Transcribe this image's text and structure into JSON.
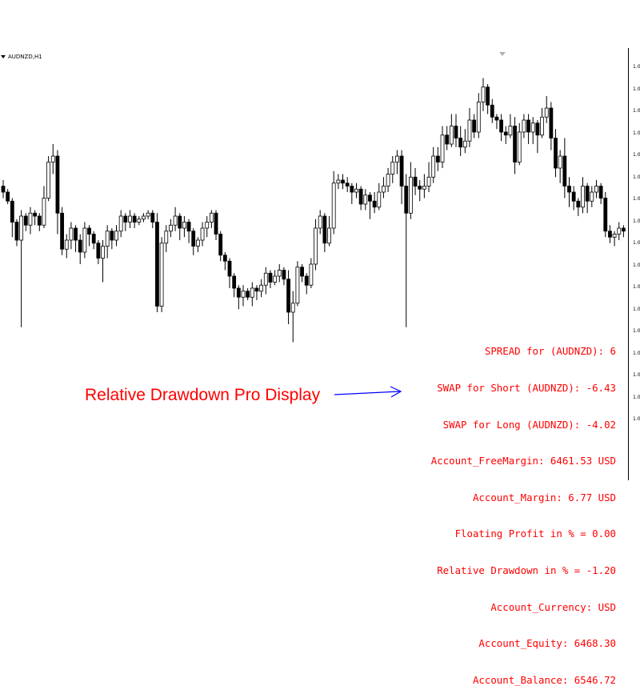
{
  "window": {
    "symbol": "AUDNZD,H1"
  },
  "price_axis": {
    "tick_label": "1.0"
  },
  "info_panel": {
    "lines": [
      "SPREAD for (AUDNZD): 6",
      "SWAP for Short (AUDNZD): -6.43",
      "SWAP for Long (AUDNZD): -4.02",
      "Account_FreeMargin: 6461.53 USD",
      "Account_Margin: 6.77 USD",
      "Floating Profit in % = 0.00",
      "Relative Drawdown in % = -1.20",
      "Account_Currency: USD",
      "Account_Equity: 6468.30",
      "Account_Balance: 6546.72"
    ]
  },
  "caption": "Relative Drawdown Pro Display",
  "colors": {
    "text_accent": "#ff0000",
    "arrow": "#0000ff",
    "candle": "#000000",
    "bull_fill": "#ffffff",
    "bear_fill": "#000000"
  },
  "chart_data": {
    "type": "candlestick",
    "title": "",
    "xlabel": "",
    "ylabel": "",
    "ylim": [
      0,
      100
    ],
    "grid": false,
    "candles": [
      [
        62,
        60,
        64,
        58
      ],
      [
        60,
        57,
        61,
        56
      ],
      [
        57,
        50,
        58,
        45
      ],
      [
        50,
        44,
        51,
        42
      ],
      [
        44,
        52,
        54,
        15
      ],
      [
        52,
        49,
        53,
        47
      ],
      [
        49,
        53,
        55,
        46
      ],
      [
        53,
        52,
        54,
        49
      ],
      [
        52,
        49,
        53,
        47
      ],
      [
        49,
        58,
        62,
        48
      ],
      [
        58,
        70,
        72,
        57
      ],
      [
        70,
        72,
        76,
        66
      ],
      [
        72,
        53,
        74,
        46
      ],
      [
        53,
        41,
        55,
        39
      ],
      [
        41,
        44,
        46,
        38
      ],
      [
        44,
        48,
        50,
        41
      ],
      [
        48,
        44,
        49,
        40
      ],
      [
        44,
        40,
        46,
        36
      ],
      [
        40,
        48,
        50,
        38
      ],
      [
        48,
        46,
        49,
        42
      ],
      [
        46,
        43,
        47,
        41
      ],
      [
        43,
        38,
        44,
        36
      ],
      [
        38,
        42,
        44,
        30
      ],
      [
        42,
        47,
        49,
        38
      ],
      [
        47,
        44,
        48,
        41
      ],
      [
        44,
        47,
        49,
        42
      ],
      [
        47,
        52,
        54,
        45
      ],
      [
        52,
        50,
        53,
        47
      ],
      [
        50,
        52,
        54,
        48
      ],
      [
        52,
        50,
        53,
        48
      ],
      [
        50,
        51,
        52,
        49
      ],
      [
        51,
        52,
        53,
        50
      ],
      [
        52,
        53,
        54,
        51
      ],
      [
        53,
        50,
        54,
        48
      ],
      [
        50,
        22,
        53,
        20
      ],
      [
        22,
        43,
        45,
        20
      ],
      [
        43,
        47,
        49,
        40
      ],
      [
        47,
        49,
        51,
        45
      ],
      [
        49,
        52,
        55,
        47
      ],
      [
        52,
        48,
        53,
        44
      ],
      [
        48,
        50,
        52,
        45
      ],
      [
        50,
        47,
        51,
        43
      ],
      [
        47,
        42,
        48,
        39
      ],
      [
        42,
        44,
        45,
        40
      ],
      [
        44,
        48,
        50,
        42
      ],
      [
        48,
        50,
        52,
        45
      ],
      [
        50,
        53,
        54,
        48
      ],
      [
        53,
        46,
        54,
        44
      ],
      [
        46,
        39,
        47,
        37
      ],
      [
        39,
        37,
        40,
        34
      ],
      [
        37,
        32,
        38,
        28
      ],
      [
        32,
        28,
        33,
        25
      ],
      [
        28,
        25,
        29,
        21
      ],
      [
        25,
        27,
        29,
        22
      ],
      [
        27,
        25,
        28,
        24
      ],
      [
        25,
        28,
        30,
        22
      ],
      [
        28,
        27,
        29,
        24
      ],
      [
        27,
        29,
        31,
        25
      ],
      [
        29,
        33,
        35,
        26
      ],
      [
        33,
        30,
        34,
        28
      ],
      [
        30,
        32,
        34,
        29
      ],
      [
        32,
        34,
        36,
        30
      ],
      [
        34,
        31,
        35,
        29
      ],
      [
        31,
        20,
        34,
        16
      ],
      [
        20,
        23,
        27,
        10
      ],
      [
        23,
        35,
        37,
        22
      ],
      [
        35,
        32,
        36,
        30
      ],
      [
        32,
        29,
        33,
        26
      ],
      [
        29,
        36,
        38,
        28
      ],
      [
        36,
        48,
        51,
        34
      ],
      [
        48,
        52,
        54,
        46
      ],
      [
        52,
        43,
        53,
        40
      ],
      [
        43,
        48,
        52,
        42
      ],
      [
        48,
        63,
        67,
        46
      ],
      [
        63,
        64,
        66,
        61
      ],
      [
        64,
        63,
        66,
        61
      ],
      [
        63,
        62,
        65,
        60
      ],
      [
        62,
        60,
        63,
        56
      ],
      [
        60,
        61,
        63,
        58
      ],
      [
        61,
        56,
        62,
        54
      ],
      [
        56,
        59,
        61,
        54
      ],
      [
        59,
        57,
        60,
        51
      ],
      [
        57,
        55,
        60,
        53
      ],
      [
        55,
        60,
        63,
        54
      ],
      [
        60,
        62,
        65,
        58
      ],
      [
        62,
        66,
        68,
        60
      ],
      [
        66,
        70,
        72,
        63
      ],
      [
        70,
        72,
        74,
        66
      ],
      [
        72,
        62,
        74,
        56
      ],
      [
        62,
        53,
        66,
        15
      ],
      [
        53,
        65,
        70,
        51
      ],
      [
        65,
        62,
        68,
        59
      ],
      [
        62,
        61,
        64,
        57
      ],
      [
        61,
        62,
        66,
        58
      ],
      [
        62,
        65,
        70,
        60
      ],
      [
        65,
        72,
        75,
        63
      ],
      [
        72,
        70,
        75,
        67
      ],
      [
        70,
        79,
        82,
        68
      ],
      [
        79,
        76,
        82,
        74
      ],
      [
        76,
        82,
        86,
        75
      ],
      [
        82,
        78,
        86,
        75
      ],
      [
        78,
        75,
        82,
        72
      ],
      [
        75,
        77,
        81,
        73
      ],
      [
        77,
        84,
        88,
        75
      ],
      [
        84,
        80,
        86,
        78
      ],
      [
        80,
        90,
        93,
        78
      ],
      [
        90,
        95,
        98,
        87
      ],
      [
        95,
        89,
        96,
        86
      ],
      [
        89,
        85,
        91,
        83
      ],
      [
        85,
        84,
        86,
        81
      ],
      [
        84,
        80,
        86,
        77
      ],
      [
        80,
        79,
        82,
        76
      ],
      [
        79,
        82,
        86,
        78
      ],
      [
        82,
        70,
        85,
        66
      ],
      [
        70,
        80,
        83,
        69
      ],
      [
        80,
        84,
        86,
        78
      ],
      [
        84,
        80,
        86,
        76
      ],
      [
        80,
        83,
        85,
        76
      ],
      [
        83,
        79,
        84,
        73
      ],
      [
        79,
        85,
        88,
        78
      ],
      [
        85,
        88,
        92,
        83
      ],
      [
        88,
        78,
        90,
        74
      ],
      [
        78,
        68,
        81,
        65
      ],
      [
        68,
        72,
        74,
        63
      ],
      [
        72,
        62,
        78,
        58
      ],
      [
        62,
        60,
        65,
        55
      ],
      [
        60,
        57,
        62,
        54
      ],
      [
        57,
        55,
        58,
        52
      ],
      [
        55,
        62,
        65,
        53
      ],
      [
        62,
        57,
        63,
        53
      ],
      [
        57,
        60,
        62,
        55
      ],
      [
        60,
        62,
        64,
        58
      ],
      [
        62,
        58,
        63,
        56
      ],
      [
        58,
        47,
        60,
        45
      ],
      [
        47,
        45,
        49,
        43
      ],
      [
        45,
        46,
        47,
        42
      ],
      [
        46,
        48,
        50,
        44
      ],
      [
        48,
        47,
        49,
        45
      ]
    ]
  }
}
